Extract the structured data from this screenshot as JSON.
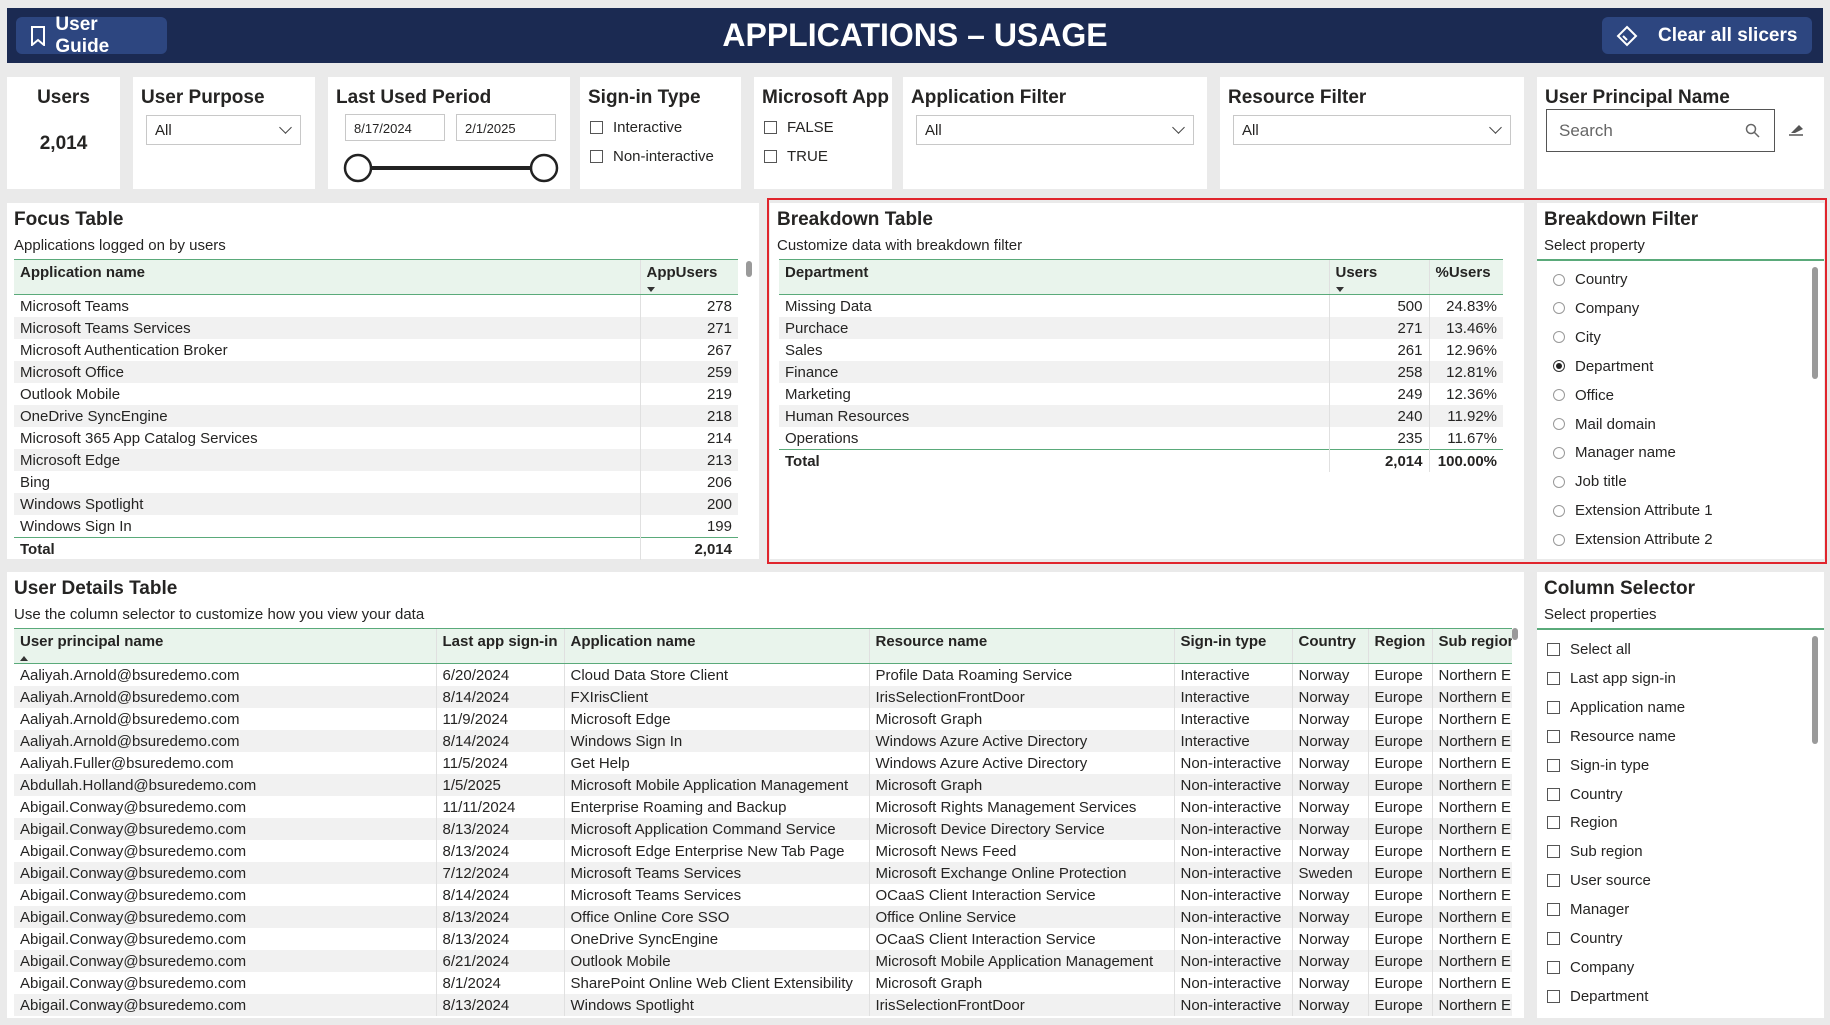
{
  "header": {
    "user_guide": "User Guide",
    "title": "APPLICATIONS – USAGE",
    "clear": "Clear all slicers"
  },
  "slicers": {
    "users": {
      "label": "Users",
      "value": "2,014"
    },
    "user_purpose": {
      "label": "User Purpose",
      "value": "All"
    },
    "last_used": {
      "label": "Last Used Period",
      "start": "8/17/2024",
      "end": "2/1/2025"
    },
    "sign_in": {
      "label": "Sign-in Type",
      "options": [
        "Interactive",
        "Non-interactive"
      ]
    },
    "microsoft_app": {
      "label": "Microsoft App",
      "options": [
        "FALSE",
        "TRUE"
      ]
    },
    "app_filter": {
      "label": "Application Filter",
      "value": "All"
    },
    "resource_filter": {
      "label": "Resource Filter",
      "value": "All"
    },
    "upn": {
      "label": "User Principal Name",
      "placeholder": "Search"
    }
  },
  "focus_table": {
    "title": "Focus Table",
    "subtitle": "Applications logged on by users",
    "columns": [
      "Application name",
      "AppUsers"
    ],
    "rows": [
      [
        "Microsoft Teams",
        "278"
      ],
      [
        "Microsoft Teams Services",
        "271"
      ],
      [
        "Microsoft Authentication Broker",
        "267"
      ],
      [
        "Microsoft Office",
        "259"
      ],
      [
        "Outlook Mobile",
        "219"
      ],
      [
        "OneDrive SyncEngine",
        "218"
      ],
      [
        "Microsoft 365 App Catalog Services",
        "214"
      ],
      [
        "Microsoft Edge",
        "213"
      ],
      [
        "Bing",
        "206"
      ],
      [
        "Windows Spotlight",
        "200"
      ],
      [
        "Windows Sign In",
        "199"
      ]
    ],
    "total": [
      "Total",
      "2,014"
    ]
  },
  "breakdown_table": {
    "title": "Breakdown Table",
    "subtitle": "Customize data with breakdown filter",
    "columns": [
      "Department",
      "Users",
      "%Users"
    ],
    "rows": [
      [
        "Missing Data",
        "500",
        "24.83%"
      ],
      [
        "Purchace",
        "271",
        "13.46%"
      ],
      [
        "Sales",
        "261",
        "12.96%"
      ],
      [
        "Finance",
        "258",
        "12.81%"
      ],
      [
        "Marketing",
        "249",
        "12.36%"
      ],
      [
        "Human Resources",
        "240",
        "11.92%"
      ],
      [
        "Operations",
        "235",
        "11.67%"
      ]
    ],
    "total": [
      "Total",
      "2,014",
      "100.00%"
    ]
  },
  "breakdown_filter": {
    "title": "Breakdown Filter",
    "subtitle": "Select property",
    "options": [
      {
        "label": "Country",
        "selected": false
      },
      {
        "label": "Company",
        "selected": false
      },
      {
        "label": "City",
        "selected": false
      },
      {
        "label": "Department",
        "selected": true
      },
      {
        "label": "Office",
        "selected": false
      },
      {
        "label": "Mail domain",
        "selected": false
      },
      {
        "label": "Manager name",
        "selected": false
      },
      {
        "label": "Job title",
        "selected": false
      },
      {
        "label": "Extension Attribute 1",
        "selected": false
      },
      {
        "label": "Extension Attribute 2",
        "selected": false
      }
    ]
  },
  "user_details": {
    "title": "User Details Table",
    "subtitle": "Use the column selector to customize how you view your data",
    "columns": [
      "User principal name",
      "Last app sign-in",
      "Application name",
      "Resource name",
      "Sign-in type",
      "Country",
      "Region",
      "Sub region"
    ],
    "rows": [
      [
        "Aaliyah.Arnold@bsuredemo.com",
        "6/20/2024",
        "Cloud Data Store Client",
        "Profile Data Roaming Service",
        "Interactive",
        "Norway",
        "Europe",
        "Northern Europe"
      ],
      [
        "Aaliyah.Arnold@bsuredemo.com",
        "8/14/2024",
        "FXIrisClient",
        "IrisSelectionFrontDoor",
        "Interactive",
        "Norway",
        "Europe",
        "Northern Europe"
      ],
      [
        "Aaliyah.Arnold@bsuredemo.com",
        "11/9/2024",
        "Microsoft Edge",
        "Microsoft Graph",
        "Interactive",
        "Norway",
        "Europe",
        "Northern Europe"
      ],
      [
        "Aaliyah.Arnold@bsuredemo.com",
        "8/14/2024",
        "Windows Sign In",
        "Windows Azure Active Directory",
        "Interactive",
        "Norway",
        "Europe",
        "Northern Europe"
      ],
      [
        "Aaliyah.Fuller@bsuredemo.com",
        "11/5/2024",
        "Get Help",
        "Windows Azure Active Directory",
        "Non-interactive",
        "Norway",
        "Europe",
        "Northern Europe"
      ],
      [
        "Abdullah.Holland@bsuredemo.com",
        "1/5/2025",
        "Microsoft Mobile Application Management",
        "Microsoft Graph",
        "Non-interactive",
        "Norway",
        "Europe",
        "Northern Europe"
      ],
      [
        "Abigail.Conway@bsuredemo.com",
        "11/11/2024",
        "Enterprise Roaming and Backup",
        "Microsoft Rights Management Services",
        "Non-interactive",
        "Norway",
        "Europe",
        "Northern Europe"
      ],
      [
        "Abigail.Conway@bsuredemo.com",
        "8/13/2024",
        "Microsoft Application Command Service",
        "Microsoft Device Directory Service",
        "Non-interactive",
        "Norway",
        "Europe",
        "Northern Europe"
      ],
      [
        "Abigail.Conway@bsuredemo.com",
        "8/13/2024",
        "Microsoft Edge Enterprise New Tab Page",
        "Microsoft News Feed",
        "Non-interactive",
        "Norway",
        "Europe",
        "Northern Europe"
      ],
      [
        "Abigail.Conway@bsuredemo.com",
        "7/12/2024",
        "Microsoft Teams Services",
        "Microsoft Exchange Online Protection",
        "Non-interactive",
        "Sweden",
        "Europe",
        "Northern Europe"
      ],
      [
        "Abigail.Conway@bsuredemo.com",
        "8/14/2024",
        "Microsoft Teams Services",
        "OCaaS Client Interaction Service",
        "Non-interactive",
        "Norway",
        "Europe",
        "Northern Europe"
      ],
      [
        "Abigail.Conway@bsuredemo.com",
        "8/13/2024",
        "Office Online Core SSO",
        "Office Online Service",
        "Non-interactive",
        "Norway",
        "Europe",
        "Northern Europe"
      ],
      [
        "Abigail.Conway@bsuredemo.com",
        "8/13/2024",
        "OneDrive SyncEngine",
        "OCaaS Client Interaction Service",
        "Non-interactive",
        "Norway",
        "Europe",
        "Northern Europe"
      ],
      [
        "Abigail.Conway@bsuredemo.com",
        "6/21/2024",
        "Outlook Mobile",
        "Microsoft Mobile Application Management",
        "Non-interactive",
        "Norway",
        "Europe",
        "Northern Europe"
      ],
      [
        "Abigail.Conway@bsuredemo.com",
        "8/1/2024",
        "SharePoint Online Web Client Extensibility",
        "Microsoft Graph",
        "Non-interactive",
        "Norway",
        "Europe",
        "Northern Europe"
      ],
      [
        "Abigail.Conway@bsuredemo.com",
        "8/13/2024",
        "Windows Spotlight",
        "IrisSelectionFrontDoor",
        "Non-interactive",
        "Norway",
        "Europe",
        "Northern Europe"
      ]
    ]
  },
  "column_selector": {
    "title": "Column Selector",
    "subtitle": "Select properties",
    "options": [
      "Select all",
      "Last app sign-in",
      "Application name",
      "Resource name",
      "Sign-in type",
      "Country",
      "Region",
      "Sub region",
      "User source",
      "Manager",
      "Country",
      "Company",
      "Department"
    ]
  }
}
